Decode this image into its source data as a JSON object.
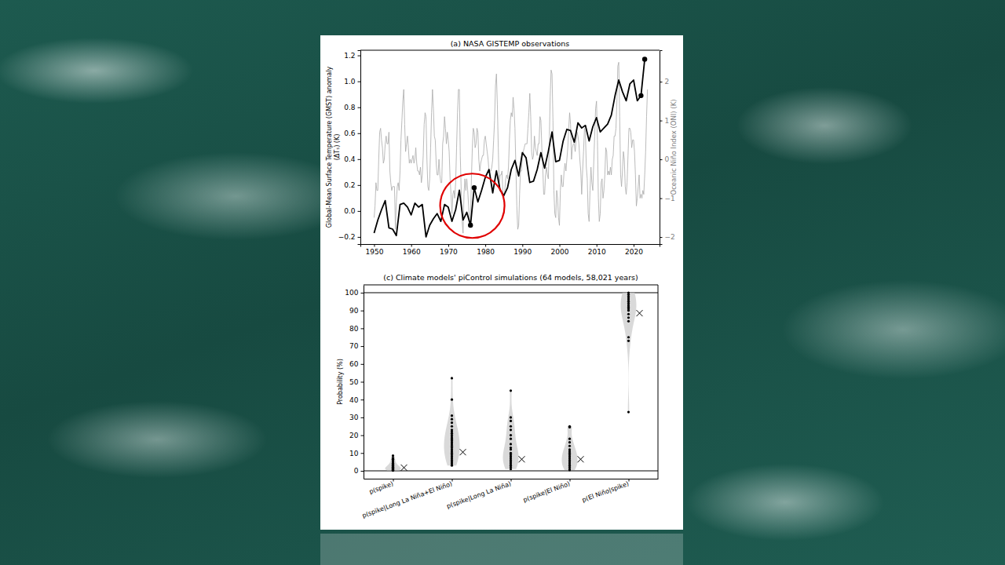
{
  "chart_data": [
    {
      "type": "line",
      "title": "(a) NASA GISTEMP observations",
      "ylabel": [
        "Global-Mean Surface Temperature (GMST) anomaly",
        "(ΔTₛ) (K)"
      ],
      "y2label": "Oceanic Niño Index (ONI) (K)",
      "xlim": [
        1946.3,
        2027.0
      ],
      "xticks": [
        1950,
        1960,
        1970,
        1980,
        1990,
        2000,
        2010,
        2020
      ],
      "ylim": [
        -0.255,
        1.24
      ],
      "yticks": [
        {
          "value": -0.2,
          "label": "−0.2"
        },
        {
          "value": 0,
          "label": "0.0"
        },
        0.2,
        0.4,
        0.6,
        0.8,
        {
          "value": 1,
          "label": "1.0"
        },
        1.2
      ],
      "y2lim": [
        -2.18,
        2.81
      ],
      "y2ticks": [
        {
          "value": -2,
          "label": "−2"
        },
        {
          "value": -1,
          "label": "−1"
        },
        0,
        1,
        2
      ],
      "series": [
        {
          "type": "line",
          "axis": "y2",
          "color": "#a9a9a9",
          "x": [
            1950,
            1950.25,
            1950.5,
            1950.75,
            1951,
            1951.25,
            1951.5,
            1951.75,
            1952,
            1952.25,
            1952.5,
            1952.75,
            1953,
            1953.25,
            1953.5,
            1953.75,
            1954,
            1954.25,
            1954.5,
            1954.75,
            1955,
            1955.25,
            1955.5,
            1955.75,
            1956,
            1956.25,
            1956.5,
            1956.75,
            1957,
            1957.25,
            1957.5,
            1957.75,
            1958,
            1958.25,
            1958.5,
            1958.75,
            1959,
            1959.25,
            1959.5,
            1959.75,
            1960,
            1960.25,
            1960.5,
            1960.75,
            1961,
            1961.25,
            1961.5,
            1961.75,
            1962,
            1962.25,
            1962.5,
            1962.75,
            1963,
            1963.25,
            1963.5,
            1963.75,
            1964,
            1964.25,
            1964.5,
            1964.75,
            1965,
            1965.25,
            1965.5,
            1965.75,
            1966,
            1966.25,
            1966.5,
            1966.75,
            1967,
            1967.25,
            1967.5,
            1967.75,
            1968,
            1968.25,
            1968.5,
            1968.75,
            1969,
            1969.25,
            1969.5,
            1969.75,
            1970,
            1970.25,
            1970.5,
            1970.75,
            1971,
            1971.25,
            1971.5,
            1971.75,
            1972,
            1972.25,
            1972.5,
            1972.75,
            1973,
            1973.25,
            1973.5,
            1973.75,
            1974,
            1974.25,
            1974.5,
            1974.75,
            1975,
            1975.25,
            1975.5,
            1975.75,
            1976,
            1976.25,
            1976.5,
            1976.75,
            1977,
            1977.25,
            1977.5,
            1977.75,
            1978,
            1978.25,
            1978.5,
            1978.75,
            1979,
            1979.25,
            1979.5,
            1979.75,
            1980,
            1980.25,
            1980.5,
            1980.75,
            1981,
            1981.25,
            1981.5,
            1981.75,
            1982,
            1982.25,
            1982.5,
            1982.75,
            1983,
            1983.25,
            1983.5,
            1983.75,
            1984,
            1984.25,
            1984.5,
            1984.75,
            1985,
            1985.25,
            1985.5,
            1985.75,
            1986,
            1986.25,
            1986.5,
            1986.75,
            1987,
            1987.25,
            1987.5,
            1987.75,
            1988,
            1988.25,
            1988.5,
            1988.75,
            1989,
            1989.25,
            1989.5,
            1989.75,
            1990,
            1990.25,
            1990.5,
            1990.75,
            1991,
            1991.25,
            1991.5,
            1991.75,
            1992,
            1992.25,
            1992.5,
            1992.75,
            1993,
            1993.25,
            1993.5,
            1993.75,
            1994,
            1994.25,
            1994.5,
            1994.75,
            1995,
            1995.25,
            1995.5,
            1995.75,
            1996,
            1996.25,
            1996.5,
            1996.75,
            1997,
            1997.25,
            1997.5,
            1997.75,
            1998,
            1998.25,
            1998.5,
            1998.75,
            1999,
            1999.25,
            1999.5,
            1999.75,
            2000,
            2000.25,
            2000.5,
            2000.75,
            2001,
            2001.25,
            2001.5,
            2001.75,
            2002,
            2002.25,
            2002.5,
            2002.75,
            2003,
            2003.25,
            2003.5,
            2003.75,
            2004,
            2004.25,
            2004.5,
            2004.75,
            2005,
            2005.25,
            2005.5,
            2005.75,
            2006,
            2006.25,
            2006.5,
            2006.75,
            2007,
            2007.25,
            2007.5,
            2007.75,
            2008,
            2008.25,
            2008.5,
            2008.75,
            2009,
            2009.25,
            2009.5,
            2009.75,
            2010,
            2010.25,
            2010.5,
            2010.75,
            2011,
            2011.25,
            2011.5,
            2011.75,
            2012,
            2012.25,
            2012.5,
            2012.75,
            2013,
            2013.25,
            2013.5,
            2013.75,
            2014,
            2014.25,
            2014.5,
            2014.75,
            2015,
            2015.25,
            2015.5,
            2015.75,
            2016,
            2016.25,
            2016.5,
            2016.75,
            2017,
            2017.25,
            2017.5,
            2017.75,
            2018,
            2018.25,
            2018.5,
            2018.75,
            2019,
            2019.25,
            2019.5,
            2019.75,
            2020,
            2020.25,
            2020.5,
            2020.75,
            2021,
            2021.25,
            2021.5,
            2021.75,
            2022,
            2022.25,
            2022.5,
            2022.75,
            2023,
            2023.25,
            2023.5,
            2023.75
          ],
          "values": [
            -1.5,
            -1.2,
            -0.6,
            -0.8,
            -0.8,
            0.0,
            0.7,
            0.8,
            0.5,
            0.3,
            -0.1,
            0.0,
            0.4,
            0.6,
            0.4,
            0.4,
            0.7,
            -0.3,
            -0.6,
            -0.8,
            -0.7,
            -0.7,
            -0.7,
            -1.8,
            -1.1,
            -0.7,
            -0.6,
            -0.8,
            -0.3,
            0.5,
            1.0,
            1.5,
            1.8,
            0.9,
            0.2,
            0.4,
            0.6,
            0.3,
            -0.1,
            0.0,
            -0.1,
            0.0,
            0.1,
            -0.1,
            0.0,
            0.3,
            -0.1,
            -0.3,
            -0.3,
            -0.4,
            -0.2,
            -0.6,
            -0.4,
            0.1,
            0.9,
            1.2,
            1.1,
            0.0,
            -0.7,
            -0.8,
            -0.5,
            0.3,
            1.2,
            1.8,
            1.3,
            0.6,
            0.5,
            -0.1,
            -0.4,
            -0.4,
            0.0,
            -0.4,
            -0.6,
            -0.6,
            0.4,
            0.6,
            1.1,
            0.8,
            0.4,
            0.7,
            0.5,
            0.2,
            -0.5,
            -0.9,
            -1.4,
            -0.9,
            -0.8,
            -1.0,
            -0.6,
            0.3,
            1.2,
            1.8,
            1.8,
            0.1,
            -0.8,
            -1.6,
            -1.9,
            -0.9,
            -0.5,
            -0.8,
            -0.5,
            -0.8,
            -1.2,
            -1.6,
            -1.6,
            -0.5,
            0.3,
            0.8,
            0.7,
            0.3,
            0.4,
            0.8,
            0.7,
            0.0,
            -0.3,
            -0.1,
            0.0,
            0.1,
            0.1,
            0.5,
            0.6,
            0.4,
            0.2,
            0.0,
            -0.3,
            -0.3,
            -0.3,
            -0.2,
            0.0,
            0.5,
            1.0,
            1.9,
            2.2,
            1.4,
            0.3,
            -0.7,
            -0.4,
            -0.4,
            -0.3,
            -0.9,
            -1.0,
            -0.8,
            -0.5,
            -0.4,
            -0.5,
            -0.2,
            0.5,
            1.0,
            1.2,
            1.1,
            1.6,
            1.3,
            0.8,
            -0.2,
            -1.2,
            -1.8,
            -1.7,
            -0.9,
            -0.3,
            -0.3,
            0.1,
            0.2,
            0.3,
            0.4,
            0.4,
            0.4,
            0.8,
            1.2,
            1.7,
            1.1,
            0.2,
            0.0,
            0.1,
            0.6,
            0.3,
            0.2,
            0.1,
            0.4,
            0.4,
            1.1,
            1.0,
            0.3,
            -0.2,
            -0.9,
            -0.9,
            -0.4,
            -0.2,
            -0.4,
            -0.5,
            0.4,
            1.6,
            2.3,
            2.2,
            1.0,
            -0.8,
            -1.4,
            -1.5,
            -0.8,
            -1.0,
            -1.5,
            -1.7,
            -0.8,
            -0.4,
            -0.7,
            -0.7,
            -0.3,
            -0.1,
            -0.3,
            0.0,
            0.3,
            0.8,
            1.2,
            0.9,
            0.0,
            0.3,
            0.4,
            0.4,
            0.2,
            0.5,
            0.7,
            0.6,
            0.4,
            0.0,
            -0.3,
            -0.9,
            -0.3,
            0.2,
            0.8,
            0.7,
            -0.2,
            -0.5,
            -1.4,
            -1.6,
            -0.8,
            -0.2,
            -0.6,
            -0.8,
            -0.1,
            0.6,
            1.3,
            1.5,
            0.5,
            -1.0,
            -1.6,
            -1.4,
            -0.6,
            -0.5,
            -1.0,
            -0.8,
            -0.4,
            0.3,
            0.2,
            -0.4,
            -0.3,
            -0.4,
            -0.2,
            -0.4,
            0.0,
            0.1,
            0.6,
            0.6,
            0.8,
            1.5,
            2.4,
            2.5,
            1.1,
            -0.4,
            -0.7,
            -0.3,
            0.2,
            0.0,
            -0.7,
            -0.9,
            -0.6,
            0.1,
            0.8,
            0.8,
            0.7,
            0.3,
            0.5,
            0.5,
            0.2,
            -0.4,
            -1.2,
            -1.0,
            -0.7,
            -0.4,
            -1.0,
            -0.9,
            -1.0,
            -0.8,
            -0.9,
            -0.4,
            0.2,
            1.1,
            1.8
          ]
        },
        {
          "type": "line",
          "color": "#000000",
          "x": [
            1950,
            1951,
            1952,
            1953,
            1954,
            1955,
            1956,
            1957,
            1958,
            1959,
            1960,
            1961,
            1962,
            1963,
            1964,
            1965,
            1966,
            1967,
            1968,
            1969,
            1970,
            1971,
            1972,
            1973,
            1974,
            1975,
            1976,
            1977,
            1978,
            1979,
            1980,
            1981,
            1982,
            1983,
            1984,
            1985,
            1986,
            1987,
            1988,
            1989,
            1990,
            1991,
            1992,
            1993,
            1994,
            1995,
            1996,
            1997,
            1998,
            1999,
            2000,
            2001,
            2002,
            2003,
            2004,
            2005,
            2006,
            2007,
            2008,
            2009,
            2010,
            2011,
            2012,
            2013,
            2014,
            2015,
            2016,
            2017,
            2018,
            2019,
            2020,
            2021,
            2022,
            2023
          ],
          "values": [
            -0.17,
            -0.07,
            0.01,
            0.08,
            -0.13,
            -0.14,
            -0.19,
            0.05,
            0.06,
            0.03,
            -0.03,
            0.06,
            0.03,
            0.05,
            -0.2,
            -0.11,
            -0.06,
            -0.02,
            -0.08,
            0.05,
            0.03,
            -0.08,
            0.01,
            0.16,
            -0.07,
            -0.01,
            -0.11,
            0.18,
            0.07,
            0.16,
            0.26,
            0.32,
            0.14,
            0.31,
            0.16,
            0.12,
            0.18,
            0.32,
            0.39,
            0.27,
            0.45,
            0.41,
            0.22,
            0.23,
            0.32,
            0.45,
            0.33,
            0.46,
            0.61,
            0.38,
            0.39,
            0.54,
            0.63,
            0.62,
            0.53,
            0.68,
            0.64,
            0.66,
            0.54,
            0.65,
            0.72,
            0.61,
            0.64,
            0.67,
            0.74,
            0.89,
            1.01,
            0.92,
            0.85,
            0.98,
            1.01,
            0.85,
            0.89,
            1.17
          ]
        },
        {
          "type": "scatter",
          "color": "#000000",
          "marker": "circle",
          "x": [
            1976,
            1977,
            2022,
            2023
          ],
          "values": [
            -0.11,
            0.18,
            0.89,
            1.17
          ]
        }
      ],
      "annotations": [
        {
          "type": "circle",
          "x": 1976.5,
          "y": 0.04,
          "color": "#e00000"
        }
      ]
    },
    {
      "type": "strip",
      "title": "(c) Climate models' piControl simulations (64 models, 58,021 years)",
      "ylabel": "Probability (%)",
      "categories": [
        "p(spike)",
        "p(spike|Long La Niña+El Niño)",
        "p(spike|Long La Niña)",
        "p(spike|El Niño)",
        "p(El Niño|spike)"
      ],
      "ylim": [
        -4.4,
        104.4
      ],
      "yticks": [
        0,
        10,
        20,
        30,
        40,
        50,
        60,
        70,
        80,
        90,
        100
      ],
      "hlines": [
        0,
        100
      ],
      "series": [
        {
          "type": "strip",
          "color": "#000000",
          "marker": "circle",
          "values": [
            [
              0.2,
              0.3,
              0.5,
              0.6,
              0.8,
              1.0,
              1.1,
              1.3,
              1.5,
              1.7,
              1.9,
              2.1,
              2.4,
              2.7,
              3.0,
              3.4,
              3.8,
              4.3,
              5.0,
              5.8,
              6.5,
              7.2,
              8.5
            ],
            [
              3,
              4,
              5,
              6,
              7,
              8,
              9,
              10,
              11,
              12,
              13,
              14,
              15,
              16,
              17,
              18,
              19,
              20,
              21,
              22,
              23,
              25,
              27,
              29,
              31,
              40,
              52
            ],
            [
              1,
              2,
              3,
              4,
              5,
              6,
              7,
              8,
              9,
              10,
              12,
              13,
              15,
              18,
              20,
              23,
              25,
              28,
              30,
              45
            ],
            [
              0.5,
              1,
              2,
              3,
              4,
              5,
              6,
              7,
              8,
              9,
              10,
              11,
              12,
              14,
              16,
              18,
              24.5,
              25
            ],
            [
              33,
              73,
              75,
              84,
              86,
              88,
              90,
              91,
              92,
              93,
              94,
              95,
              96,
              97,
              98,
              99,
              100
            ]
          ]
        },
        {
          "type": "scatter",
          "color": "#000000",
          "marker": "x",
          "values": [
            1.8,
            10.5,
            6.5,
            6.5,
            88.5
          ]
        }
      ]
    }
  ]
}
